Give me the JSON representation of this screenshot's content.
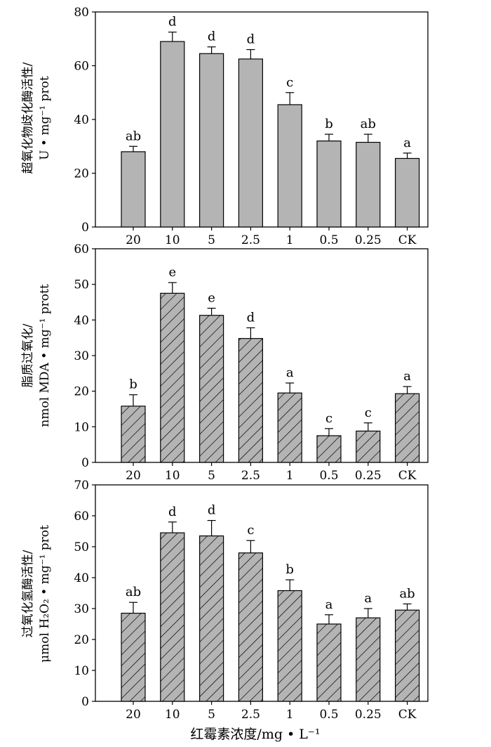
{
  "chart_data": [
    {
      "type": "bar",
      "categories": [
        "20",
        "10",
        "5",
        "2.5",
        "1",
        "0.5",
        "0.25",
        "CK"
      ],
      "values": [
        28,
        69,
        64.5,
        62.5,
        45.5,
        32,
        31.5,
        25.5
      ],
      "errors": [
        2,
        3.5,
        2.5,
        3.5,
        4.5,
        2.5,
        3,
        2
      ],
      "letters": [
        "ab",
        "d",
        "d",
        "d",
        "c",
        "b",
        "ab",
        "a"
      ],
      "ylabel_line1": "超氧化物歧化酶活性/",
      "ylabel_line2": "U • mg⁻¹ prot",
      "ylim": [
        0,
        80
      ],
      "yticks": [
        0,
        20,
        40,
        60,
        80
      ],
      "fill": "solid-gray",
      "bar_color": "#b4b4b4"
    },
    {
      "type": "bar",
      "categories": [
        "20",
        "10",
        "5",
        "2.5",
        "1",
        "0.5",
        "0.25",
        "CK"
      ],
      "values": [
        15.8,
        47.5,
        41.3,
        34.8,
        19.5,
        7.5,
        8.8,
        19.3
      ],
      "errors": [
        3.2,
        3,
        2,
        3,
        2.8,
        2,
        2.3,
        2
      ],
      "letters": [
        "b",
        "e",
        "e",
        "d",
        "a",
        "c",
        "c",
        "a"
      ],
      "ylabel_line1": "脂质过氧化/",
      "ylabel_line2": "nmol MDA • mg⁻¹ prott",
      "ylim": [
        0,
        60
      ],
      "yticks": [
        0,
        10,
        20,
        30,
        40,
        50,
        60
      ],
      "fill": "hatched",
      "bar_color": "#b4b4b4"
    },
    {
      "type": "bar",
      "categories": [
        "20",
        "10",
        "5",
        "2.5",
        "1",
        "0.5",
        "0.25",
        "CK"
      ],
      "values": [
        28.5,
        54.5,
        53.5,
        48,
        35.8,
        25,
        27,
        29.5
      ],
      "errors": [
        3.5,
        3.5,
        5,
        4,
        3.5,
        3,
        3,
        2
      ],
      "letters": [
        "ab",
        "d",
        "d",
        "c",
        "b",
        "a",
        "a",
        "ab"
      ],
      "ylabel_line1": "过氧化氢酶活性/",
      "ylabel_line2": "μmol H₂O₂ • mg⁻¹ prot",
      "ylim": [
        0,
        70
      ],
      "yticks": [
        0,
        10,
        20,
        30,
        40,
        50,
        60,
        70
      ],
      "fill": "hatched",
      "bar_color": "#b4b4b4"
    }
  ],
  "xlabel": "红霉素浓度/mg • L⁻¹"
}
